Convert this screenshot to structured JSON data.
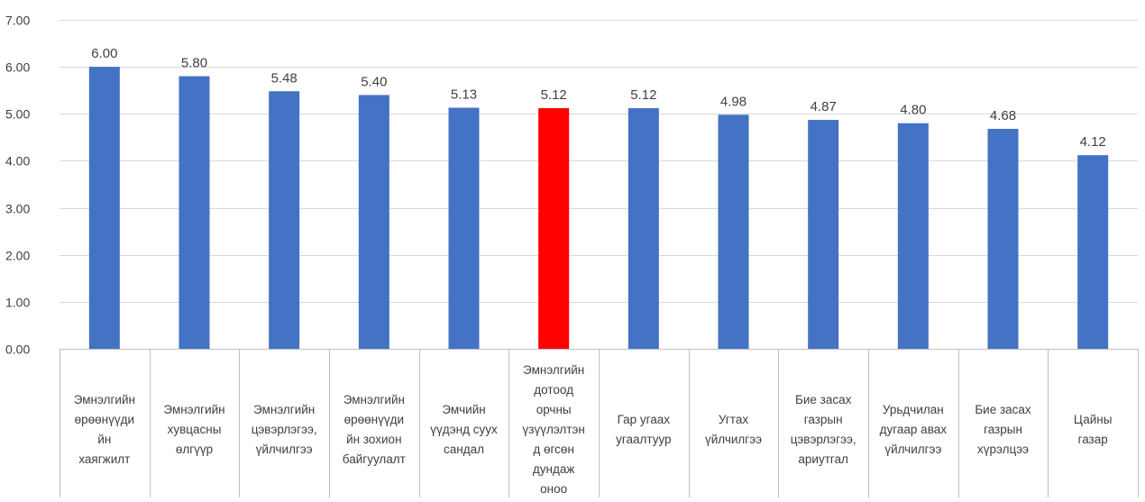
{
  "chart_data": {
    "type": "bar",
    "title": "",
    "xlabel": "",
    "ylabel": "",
    "ylim": [
      0,
      7
    ],
    "yticks": [
      0,
      1,
      2,
      3,
      4,
      5,
      6,
      7
    ],
    "ytick_labels": [
      "0.00",
      "1.00",
      "2.00",
      "3.00",
      "4.00",
      "5.00",
      "6.00",
      "7.00"
    ],
    "grid": true,
    "legend": "none",
    "categories": [
      [
        "Эмнэлгийн",
        "өрөөнүүди",
        "йн",
        "хаягжилт"
      ],
      [
        "Эмнэлгийн",
        "хувцасны",
        "өлгүүр"
      ],
      [
        "Эмнэлгийн",
        "цэвэрлэгээ,",
        "үйлчилгээ"
      ],
      [
        "Эмнэлгийн",
        "өрөөнүүди",
        "йн зохион",
        "байгуулалт"
      ],
      [
        "Эмчийн",
        "үүдэнд суух",
        "сандал"
      ],
      [
        "Эмнэлгийн",
        "дотоод",
        "орчны",
        "үзүүлэлтэн",
        "д өгсөн",
        "дундаж",
        "оноо"
      ],
      [
        "Гар угаах",
        "угаалтуур"
      ],
      [
        "Угтах",
        "үйлчилгээ"
      ],
      [
        "Бие засах",
        "газрын",
        "цэвэрлэгээ,",
        "ариутгал"
      ],
      [
        "Урьдчилан",
        "дугаар авах",
        "үйлчилгээ"
      ],
      [
        "Бие засах",
        "газрын",
        "хүрэлцээ"
      ],
      [
        "Цайны",
        "газар"
      ]
    ],
    "values": [
      6.0,
      5.8,
      5.48,
      5.4,
      5.13,
      5.12,
      5.12,
      4.98,
      4.87,
      4.8,
      4.68,
      4.12
    ],
    "value_labels": [
      "6.00",
      "5.80",
      "5.48",
      "5.40",
      "5.13",
      "5.12",
      "5.12",
      "4.98",
      "4.87",
      "4.80",
      "4.68",
      "4.12"
    ],
    "colors": {
      "default": "#4472c4",
      "highlight": "#ff0000"
    },
    "highlight_index": 5
  }
}
